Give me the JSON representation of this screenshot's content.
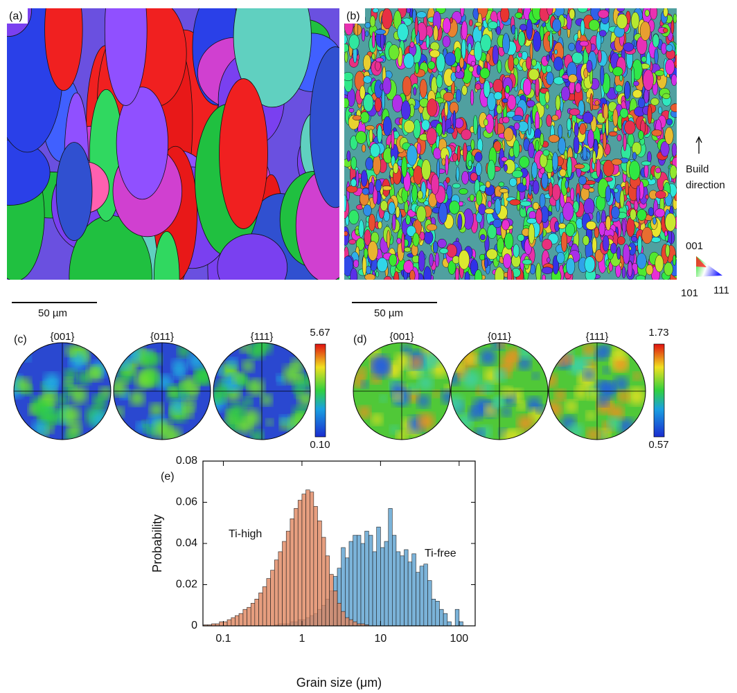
{
  "panels": {
    "a": {
      "label": "(a)",
      "scale_bar": "50 µm"
    },
    "b": {
      "label": "(b)",
      "scale_bar": "50 µm"
    },
    "build_direction": [
      "Build",
      "direction"
    ],
    "ipf_key": {
      "top": "001",
      "left": "101",
      "right": "111"
    },
    "c": {
      "label": "(c)",
      "poles": [
        "{001}",
        "{011}",
        "{111}"
      ],
      "colorbar": {
        "max": "5.67",
        "min": "0.10"
      }
    },
    "d": {
      "label": "(d)",
      "poles": [
        "{001}",
        "{011}",
        "{111}"
      ],
      "colorbar": {
        "max": "1.73",
        "min": "0.57"
      }
    },
    "e": {
      "label": "(e)"
    }
  },
  "chart_data": {
    "type": "histogram",
    "xlabel": "Grain size (μm)",
    "ylabel": "Probability",
    "xscale": "log",
    "xlim": [
      0.055,
      160
    ],
    "ylim": [
      0,
      0.08
    ],
    "xticks": [
      0.1,
      1,
      10,
      100
    ],
    "yticks": [
      0,
      0.02,
      0.04,
      0.06,
      0.08
    ],
    "bins": [
      0.0562,
      0.0631,
      0.0708,
      0.0794,
      0.0891,
      0.1,
      0.112,
      0.126,
      0.141,
      0.158,
      0.178,
      0.2,
      0.224,
      0.251,
      0.282,
      0.316,
      0.355,
      0.398,
      0.447,
      0.501,
      0.562,
      0.631,
      0.708,
      0.794,
      0.891,
      1,
      1.12,
      1.26,
      1.41,
      1.58,
      1.78,
      2,
      2.24,
      2.51,
      2.82,
      3.16,
      3.55,
      3.98,
      4.47,
      5.01,
      5.62,
      6.31,
      7.08,
      7.94,
      8.91,
      10,
      11.2,
      12.6,
      14.1,
      15.8,
      17.8,
      20,
      22.4,
      25.1,
      28.2,
      31.6,
      35.5,
      39.8,
      44.7,
      50.1,
      56.2,
      63.1,
      70.8,
      79.4,
      89.1,
      100,
      112
    ],
    "series": [
      {
        "name": "Ti-free",
        "color": "#5aa0d0",
        "values": [
          0,
          0,
          0,
          0,
          0,
          0,
          0,
          0,
          0,
          0,
          0,
          0,
          0,
          0,
          0,
          0,
          0,
          0,
          0.0005,
          0.001,
          0.001,
          0.001,
          0.002,
          0.002,
          0.003,
          0.003,
          0.004,
          0.005,
          0.006,
          0.008,
          0.01,
          0.013,
          0.017,
          0.024,
          0.028,
          0.038,
          0.033,
          0.041,
          0.044,
          0.044,
          0.04,
          0.046,
          0.044,
          0.036,
          0.048,
          0.038,
          0.041,
          0.057,
          0.044,
          0.036,
          0.034,
          0.037,
          0.031,
          0.035,
          0.026,
          0.029,
          0.03,
          0.022,
          0.013,
          0.012,
          0.008,
          0.006,
          0.002,
          0,
          0.008,
          0.002
        ]
      },
      {
        "name": "Ti-high",
        "color": "#e0865f",
        "values": [
          0.0005,
          0.0005,
          0.001,
          0.001,
          0.002,
          0.002,
          0.003,
          0.004,
          0.005,
          0.006,
          0.008,
          0.009,
          0.011,
          0.013,
          0.016,
          0.019,
          0.023,
          0.027,
          0.032,
          0.036,
          0.041,
          0.046,
          0.052,
          0.057,
          0.061,
          0.064,
          0.066,
          0.065,
          0.058,
          0.051,
          0.043,
          0.034,
          0.025,
          0.017,
          0.011,
          0.007,
          0.004,
          0.003,
          0.002,
          0.001,
          0.001,
          0.0005,
          0,
          0,
          0,
          0,
          0,
          0,
          0,
          0,
          0,
          0,
          0,
          0,
          0,
          0,
          0,
          0,
          0,
          0,
          0,
          0,
          0,
          0,
          0,
          0
        ]
      }
    ]
  }
}
